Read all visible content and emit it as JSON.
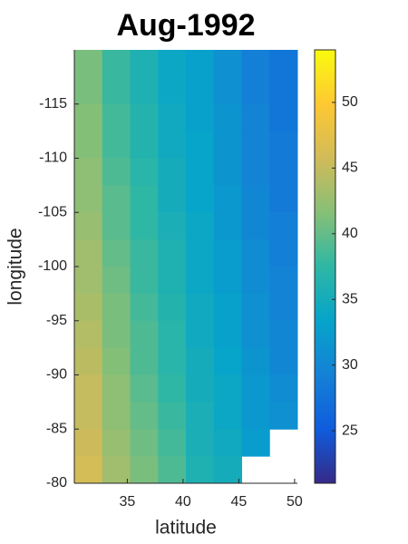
{
  "chart_data": {
    "type": "heatmap",
    "title": "Aug-1992",
    "xlabel": "latitude",
    "ylabel": "longitude",
    "x": [
      31.5,
      34,
      36.5,
      39,
      41.5,
      44,
      46.5,
      49
    ],
    "y": [
      -118.75,
      -116.25,
      -113.75,
      -111.25,
      -108.75,
      -106.25,
      -103.75,
      -101.25,
      -98.75,
      -96.25,
      -93.75,
      -91.25,
      -88.75,
      -86.25,
      -83.75,
      -81.25
    ],
    "z": [
      [
        41,
        38,
        36,
        34,
        33,
        31,
        29,
        28
      ],
      [
        41,
        38,
        36,
        34,
        33,
        31,
        29,
        28
      ],
      [
        41.5,
        38.5,
        36.5,
        34.5,
        33,
        31.5,
        29.5,
        28
      ],
      [
        41.5,
        38.5,
        36.5,
        34.5,
        33.5,
        31.5,
        29.5,
        28.5
      ],
      [
        42,
        39,
        37,
        35,
        33.5,
        31.5,
        29.5,
        28.5
      ],
      [
        42,
        39.5,
        37.5,
        35,
        33.5,
        32,
        30,
        28.5
      ],
      [
        42.5,
        39.5,
        37.5,
        35.5,
        34,
        32,
        30,
        29
      ],
      [
        43,
        40,
        38,
        36,
        34,
        32.5,
        30.5,
        29
      ],
      [
        43,
        40.5,
        38,
        36,
        34,
        32.5,
        30.5,
        29.5
      ],
      [
        43.5,
        41,
        38.5,
        36.5,
        34.5,
        33,
        31,
        29.5
      ],
      [
        44,
        41,
        39,
        37,
        34.5,
        33,
        31,
        30
      ],
      [
        44.5,
        41.5,
        39,
        37,
        35,
        33.5,
        31.5,
        30
      ],
      [
        45,
        42,
        39.5,
        37.5,
        35,
        34,
        32,
        30.5
      ],
      [
        45,
        42,
        40,
        38,
        35.5,
        34,
        32,
        31
      ],
      [
        45.5,
        42.5,
        40.5,
        38.5,
        35.5,
        34.5,
        32.5,
        null
      ],
      [
        46,
        43,
        41,
        39,
        36,
        35,
        null,
        null
      ]
    ],
    "xlim": [
      30.25,
      50.25
    ],
    "ylim": [
      -80,
      -120
    ],
    "xticks": [
      35,
      40,
      45,
      50
    ],
    "yticks": [
      -115,
      -110,
      -105,
      -100,
      -95,
      -90,
      -85,
      -80
    ],
    "colormap": "parula",
    "clim": [
      21,
      54
    ],
    "cticks": [
      25,
      30,
      35,
      40,
      45,
      50
    ]
  }
}
